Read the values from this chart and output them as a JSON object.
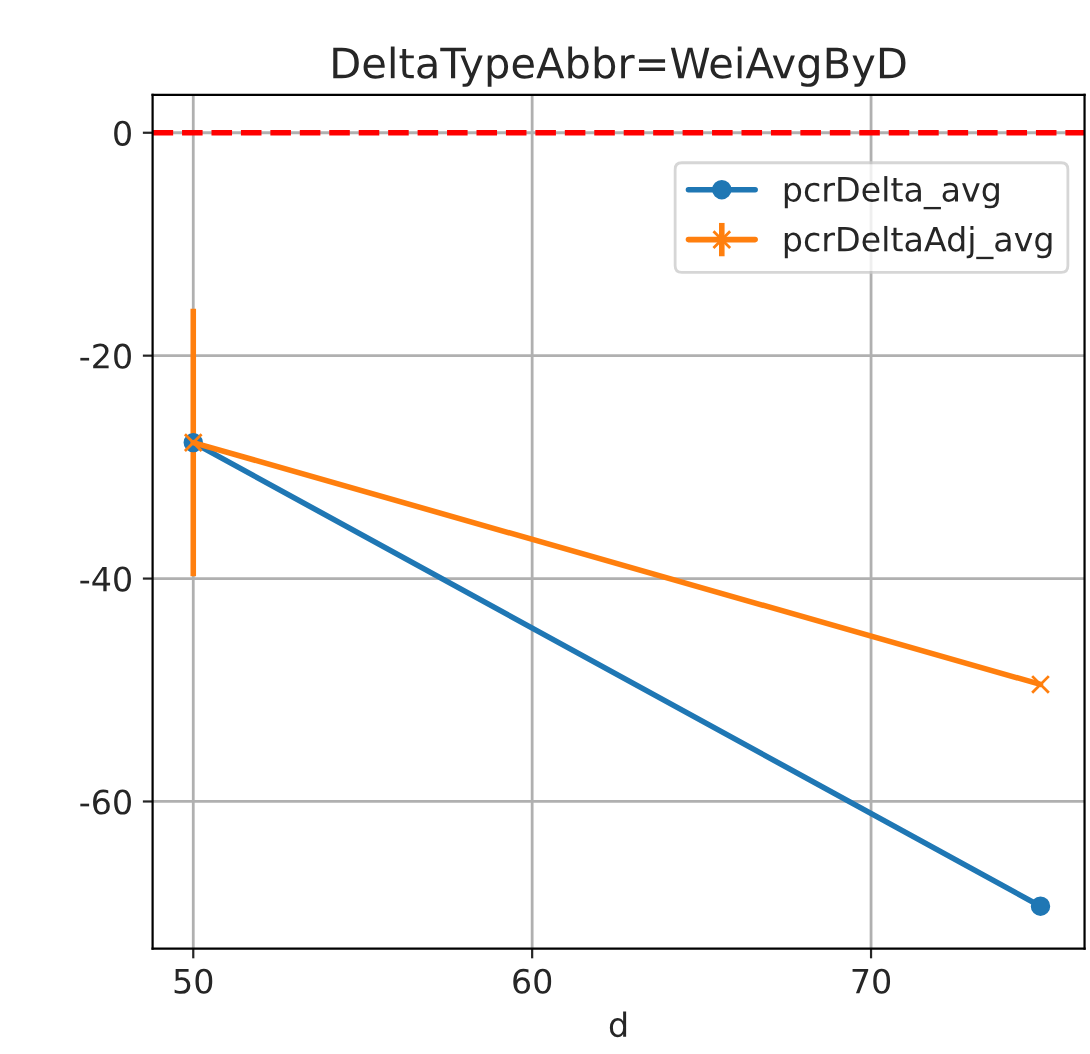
{
  "chart_data": {
    "type": "line",
    "title": "DeltaTypeAbbr=WeiAvgByD",
    "xlabel": "d",
    "x": [
      50,
      75
    ],
    "series": [
      {
        "name": "pcrDelta_avg",
        "color": "#1f77b4",
        "values": [
          -27.8,
          -69.4
        ],
        "marker": "circle"
      },
      {
        "name": "pcrDeltaAdj_avg",
        "color": "#ff7f0e",
        "values": [
          -27.8,
          -49.5
        ],
        "marker": "cross",
        "errors": [
          12,
          null
        ]
      }
    ],
    "xlim": [
      48.8,
      76.3
    ],
    "ylim": [
      -73.2,
      3.4
    ],
    "xticks": [
      50,
      60,
      70
    ],
    "yticks": [
      0,
      -20,
      -40,
      -60
    ],
    "ref_lines": [
      {
        "axis": "y",
        "value": 0,
        "color": "#ff0000",
        "line_style": "dashed"
      }
    ],
    "grid": true,
    "legend": "top right"
  }
}
